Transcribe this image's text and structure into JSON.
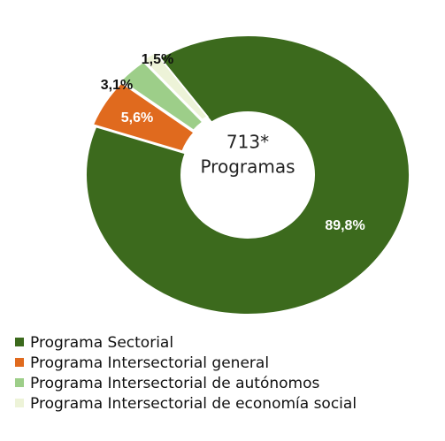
{
  "chart_data": {
    "type": "donut",
    "categories": [
      "Programa Sectorial",
      "Programa Intersectorial general",
      "Programa Intersectorial de autónomos",
      "Programa Intersectorial de economía social"
    ],
    "values": [
      89.8,
      5.6,
      3.1,
      1.5
    ],
    "value_labels": [
      "89,8%",
      "5,6%",
      "3,1%",
      "1,5%"
    ],
    "colors": [
      "#3c6a1d",
      "#e06a1e",
      "#9dce89",
      "#edf3d8"
    ],
    "annotations": [
      "713*",
      "Programas"
    ]
  }
}
